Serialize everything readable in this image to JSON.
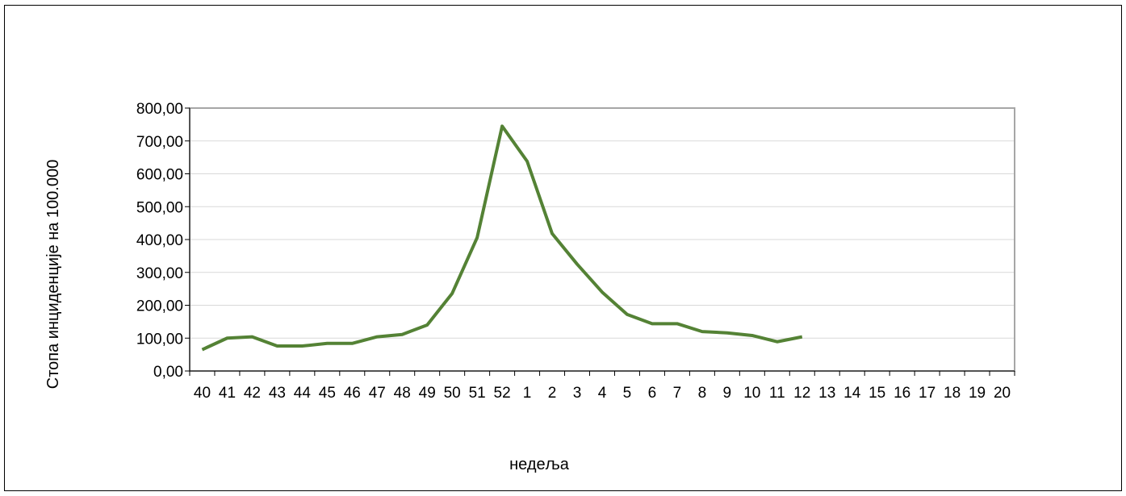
{
  "chart_data": {
    "type": "line",
    "title": "",
    "xlabel": "недеља",
    "ylabel": "Стопа инциденције на 100.000",
    "categories": [
      "40",
      "41",
      "42",
      "43",
      "44",
      "45",
      "46",
      "47",
      "48",
      "49",
      "50",
      "51",
      "52",
      "1",
      "2",
      "3",
      "4",
      "5",
      "6",
      "7",
      "8",
      "9",
      "10",
      "11",
      "12",
      "13",
      "14",
      "15",
      "16",
      "17",
      "18",
      "19",
      "20"
    ],
    "y_ticks": [
      "0,00",
      "100,00",
      "200,00",
      "300,00",
      "400,00",
      "500,00",
      "600,00",
      "700,00",
      "800,00"
    ],
    "ylim": [
      0,
      800
    ],
    "grid": true,
    "legend": "none",
    "series": [
      {
        "color": "#548235",
        "values": [
          65,
          100,
          104,
          76,
          76,
          84,
          84,
          104,
          111,
          140,
          236,
          406,
          745,
          638,
          418,
          325,
          240,
          172,
          144,
          144,
          120,
          116,
          108,
          89,
          104,
          null,
          null,
          null,
          null,
          null,
          null,
          null,
          null
        ]
      }
    ]
  },
  "colors": {
    "line": "#548235",
    "grid": "#d9d9d9",
    "plot_border": "#a6a6a6",
    "axis": "#000000"
  }
}
